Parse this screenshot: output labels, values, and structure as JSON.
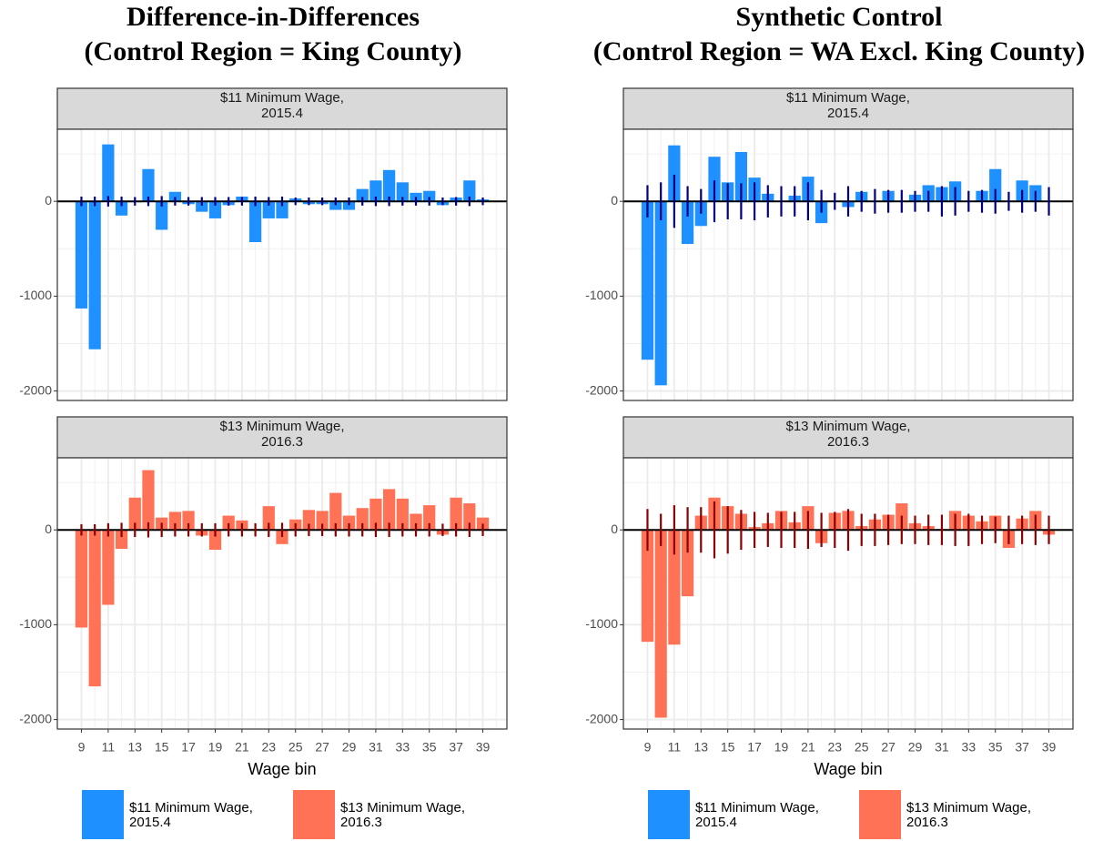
{
  "chart_data": [
    {
      "type": "bar",
      "title": "Difference-in-Differences\n(Control Region = King County)",
      "x_label": "Wage bin",
      "x": [
        9,
        10,
        11,
        12,
        13,
        14,
        15,
        16,
        17,
        18,
        19,
        20,
        21,
        22,
        23,
        24,
        25,
        26,
        27,
        28,
        29,
        30,
        31,
        32,
        33,
        34,
        35,
        36,
        37,
        38,
        39
      ],
      "xlim": [
        7.2,
        40.8
      ],
      "xticks": [
        9,
        11,
        13,
        15,
        17,
        19,
        21,
        23,
        25,
        27,
        29,
        31,
        33,
        35,
        37,
        39
      ],
      "ylim": [
        -2100,
        760
      ],
      "yticks": [
        -2000,
        -1000,
        0
      ],
      "grid": true,
      "series": [
        {
          "name": "$11 Minimum Wage,\n2015.4",
          "color": "#1e90ff",
          "error_color": "#000080",
          "values": [
            -1130,
            -1560,
            600,
            -150,
            -10,
            340,
            -300,
            100,
            -30,
            -110,
            -180,
            -40,
            50,
            -430,
            -180,
            -180,
            30,
            -30,
            -30,
            -90,
            -90,
            130,
            220,
            330,
            200,
            90,
            110,
            -40,
            40,
            220,
            20
          ],
          "errors": [
            50,
            50,
            55,
            50,
            45,
            50,
            55,
            45,
            45,
            45,
            45,
            45,
            45,
            50,
            45,
            50,
            40,
            40,
            40,
            40,
            40,
            45,
            50,
            50,
            45,
            45,
            45,
            40,
            45,
            50,
            40
          ]
        },
        {
          "name": "$13 Minimum Wage,\n2016.3",
          "color": "#ff7256",
          "error_color": "#8b0000",
          "values": [
            -1030,
            -1650,
            -790,
            -200,
            340,
            630,
            130,
            190,
            200,
            -60,
            -210,
            150,
            100,
            10,
            250,
            -150,
            110,
            210,
            200,
            390,
            150,
            230,
            330,
            430,
            330,
            170,
            260,
            -50,
            340,
            280,
            130
          ],
          "errors": [
            60,
            60,
            70,
            75,
            75,
            80,
            75,
            70,
            70,
            70,
            70,
            70,
            70,
            70,
            75,
            75,
            70,
            65,
            65,
            70,
            70,
            70,
            75,
            75,
            70,
            70,
            70,
            65,
            70,
            75,
            65
          ]
        }
      ]
    },
    {
      "type": "bar",
      "title": "Synthetic Control\n(Control Region = WA Excl. King County)",
      "x_label": "Wage bin",
      "x": [
        9,
        10,
        11,
        12,
        13,
        14,
        15,
        16,
        17,
        18,
        19,
        20,
        21,
        22,
        23,
        24,
        25,
        26,
        27,
        28,
        29,
        30,
        31,
        32,
        33,
        34,
        35,
        36,
        37,
        38,
        39
      ],
      "xlim": [
        7.2,
        40.8
      ],
      "xticks": [
        9,
        11,
        13,
        15,
        17,
        19,
        21,
        23,
        25,
        27,
        29,
        31,
        33,
        35,
        37,
        39
      ],
      "ylim": [
        -2100,
        760
      ],
      "yticks": [
        -2000,
        -1000,
        0
      ],
      "grid": true,
      "series": [
        {
          "name": "$11 Minimum Wage,\n2015.4",
          "color": "#1e90ff",
          "error_color": "#000080",
          "values": [
            -1670,
            -1940,
            590,
            -450,
            -260,
            470,
            200,
            520,
            250,
            80,
            0,
            60,
            260,
            -230,
            0,
            -60,
            100,
            0,
            110,
            0,
            70,
            170,
            150,
            210,
            0,
            110,
            340,
            0,
            220,
            170,
            0
          ],
          "errors": [
            170,
            200,
            280,
            160,
            130,
            220,
            190,
            190,
            200,
            170,
            160,
            160,
            200,
            120,
            90,
            160,
            110,
            130,
            120,
            120,
            110,
            110,
            160,
            150,
            110,
            120,
            130,
            100,
            120,
            110,
            150
          ]
        },
        {
          "name": "$13 Minimum Wage,\n2016.3",
          "color": "#ff7256",
          "error_color": "#8b0000",
          "values": [
            -1180,
            -1980,
            -1210,
            -700,
            150,
            340,
            250,
            170,
            30,
            70,
            200,
            80,
            250,
            -140,
            180,
            200,
            40,
            110,
            160,
            280,
            70,
            40,
            10,
            200,
            150,
            90,
            150,
            -190,
            120,
            200,
            -50
          ],
          "errors": [
            220,
            170,
            260,
            240,
            240,
            300,
            250,
            210,
            190,
            180,
            190,
            190,
            200,
            180,
            190,
            220,
            170,
            170,
            160,
            150,
            150,
            160,
            160,
            170,
            170,
            150,
            140,
            150,
            150,
            160,
            150
          ]
        }
      ]
    }
  ]
}
